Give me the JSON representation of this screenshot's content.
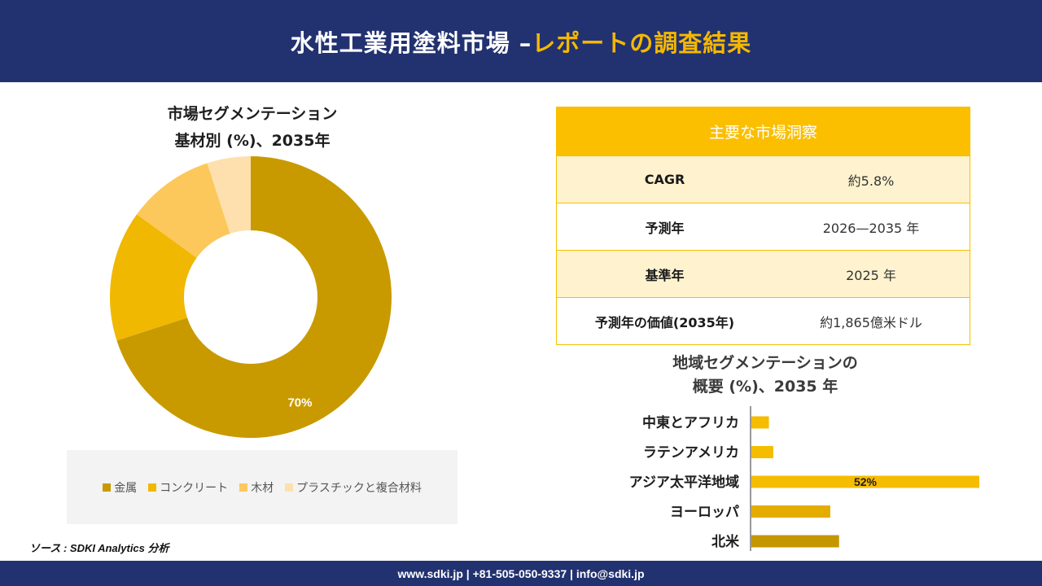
{
  "header": {
    "title_main": "水性工業用塗料市場 –",
    "title_highlight": "レポートの調査結果"
  },
  "donut": {
    "title_line1": "市場セグメンテーション",
    "title_line2": "基材別 (%)、2035年"
  },
  "insights": {
    "header": "主要な市場洞察",
    "rows": [
      {
        "label": "CAGR",
        "value": "約5.8%"
      },
      {
        "label": "予測年",
        "value": "2026—2035 年"
      },
      {
        "label": "基準年",
        "value": "2025 年"
      },
      {
        "label": "予測年の価値(2035年)",
        "value": "約1,865億米ドル"
      }
    ]
  },
  "region": {
    "title_line1": "地域セグメンテーションの",
    "title_line2": "概要 (%)、2035 年"
  },
  "source": "ソース : SDKI Analytics 分析",
  "footer": "www.sdki.jp | +81-505-050-9337 | info@sdki.jp",
  "chart_data": [
    {
      "type": "pie",
      "variant": "donut",
      "categories": [
        "金属",
        "コンクリート",
        "木材",
        "プラスチックと複合材料"
      ],
      "values": [
        70,
        15,
        10,
        5
      ],
      "colors": [
        "#c89a00",
        "#f0b800",
        "#fcc85c",
        "#fde0ad"
      ],
      "data_labels": [
        "70%",
        "",
        "",
        ""
      ],
      "legend_position": "bottom"
    },
    {
      "type": "bar",
      "orientation": "horizontal",
      "categories": [
        "中東とアフリカ",
        "ラテンアメリカ",
        "アジア太平洋地域",
        "ヨーロッパ",
        "北米"
      ],
      "values": [
        4,
        5,
        52,
        18,
        20
      ],
      "colors": [
        "#f5bc00",
        "#f5bc00",
        "#f5bc00",
        "#e5ac00",
        "#c49600"
      ],
      "data_labels": [
        "",
        "",
        "52%",
        "",
        ""
      ],
      "xlim": [
        0,
        52
      ]
    }
  ]
}
